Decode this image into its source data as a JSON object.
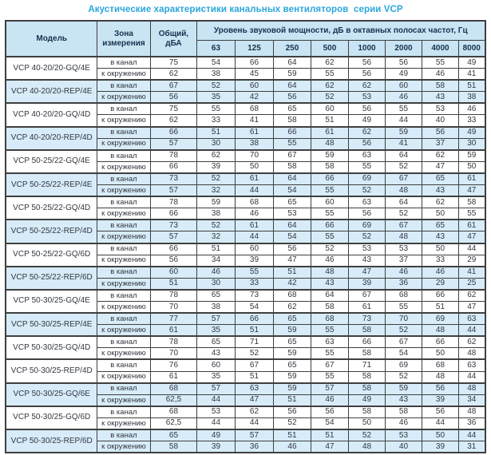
{
  "title": "Акустические характеристики канальных вентиляторов  серии VCP",
  "colors": {
    "title_accent": "#2ba6dc",
    "header_bg": "#c9e4f3",
    "stripe_bg": "#d7ecf8",
    "border": "#3f3f3f"
  },
  "table": {
    "headers": {
      "model": "Модель",
      "zone": "Зона измерения",
      "total": "Общий, дБА",
      "spl": "Уровень звуковой мощности, дБ в октавных полосах частот, Гц",
      "frequencies": [
        "63",
        "125",
        "250",
        "500",
        "1000",
        "2000",
        "4000",
        "8000"
      ]
    },
    "zone_labels": {
      "duct": "в канал",
      "ambient": "к окружению"
    },
    "rows": [
      {
        "model": "VCP 40-20/20-GQ/4E",
        "shaded": false,
        "duct": {
          "total": "75",
          "bands": [
            "54",
            "66",
            "64",
            "62",
            "56",
            "56",
            "55",
            "49"
          ]
        },
        "ambient": {
          "total": "62",
          "bands": [
            "38",
            "45",
            "59",
            "55",
            "56",
            "49",
            "46",
            "41"
          ]
        }
      },
      {
        "model": "VCP 40-20/20-REP/4E",
        "shaded": true,
        "duct": {
          "total": "67",
          "bands": [
            "52",
            "60",
            "64",
            "62",
            "62",
            "60",
            "58",
            "51"
          ]
        },
        "ambient": {
          "total": "56",
          "bands": [
            "35",
            "42",
            "56",
            "52",
            "53",
            "46",
            "43",
            "38"
          ]
        }
      },
      {
        "model": "VCP 40-20/20-GQ/4D",
        "shaded": false,
        "duct": {
          "total": "75",
          "bands": [
            "55",
            "68",
            "65",
            "60",
            "56",
            "55",
            "53",
            "46"
          ]
        },
        "ambient": {
          "total": "62",
          "bands": [
            "33",
            "41",
            "58",
            "51",
            "49",
            "44",
            "40",
            "33"
          ]
        }
      },
      {
        "model": "VCP 40-20/20-REP/4D",
        "shaded": true,
        "duct": {
          "total": "66",
          "bands": [
            "51",
            "61",
            "66",
            "61",
            "62",
            "59",
            "56",
            "49"
          ]
        },
        "ambient": {
          "total": "57",
          "bands": [
            "30",
            "38",
            "55",
            "48",
            "56",
            "41",
            "37",
            "30"
          ]
        }
      },
      {
        "model": "VCP 50-25/22-GQ/4E",
        "shaded": false,
        "duct": {
          "total": "78",
          "bands": [
            "62",
            "70",
            "67",
            "59",
            "63",
            "64",
            "62",
            "59"
          ]
        },
        "ambient": {
          "total": "66",
          "bands": [
            "39",
            "50",
            "58",
            "58",
            "55",
            "52",
            "47",
            "50"
          ]
        }
      },
      {
        "model": "VCP 50-25/22-REP/4E",
        "shaded": true,
        "duct": {
          "total": "73",
          "bands": [
            "52",
            "61",
            "64",
            "66",
            "69",
            "67",
            "65",
            "61"
          ]
        },
        "ambient": {
          "total": "57",
          "bands": [
            "32",
            "44",
            "54",
            "55",
            "52",
            "48",
            "43",
            "47"
          ]
        }
      },
      {
        "model": "VCP 50-25/22-GQ/4D",
        "shaded": false,
        "duct": {
          "total": "78",
          "bands": [
            "59",
            "68",
            "65",
            "60",
            "63",
            "64",
            "62",
            "58"
          ]
        },
        "ambient": {
          "total": "66",
          "bands": [
            "38",
            "46",
            "53",
            "55",
            "56",
            "52",
            "50",
            "55"
          ]
        }
      },
      {
        "model": "VCP 50-25/22-REP/4D",
        "shaded": true,
        "duct": {
          "total": "73",
          "bands": [
            "52",
            "61",
            "64",
            "66",
            "69",
            "67",
            "65",
            "61"
          ]
        },
        "ambient": {
          "total": "57",
          "bands": [
            "32",
            "44",
            "54",
            "55",
            "52",
            "48",
            "43",
            "47"
          ]
        }
      },
      {
        "model": "VCP 50-25/22-GQ/6D",
        "shaded": false,
        "duct": {
          "total": "66",
          "bands": [
            "51",
            "60",
            "56",
            "52",
            "53",
            "53",
            "50",
            "44"
          ]
        },
        "ambient": {
          "total": "56",
          "bands": [
            "34",
            "39",
            "47",
            "46",
            "43",
            "37",
            "33",
            "29"
          ]
        }
      },
      {
        "model": "VCP 50-25/22-REP/6D",
        "shaded": true,
        "duct": {
          "total": "60",
          "bands": [
            "46",
            "55",
            "51",
            "48",
            "47",
            "46",
            "46",
            "41"
          ]
        },
        "ambient": {
          "total": "51",
          "bands": [
            "30",
            "33",
            "42",
            "43",
            "39",
            "36",
            "29",
            "25"
          ]
        }
      },
      {
        "model": "VCP 50-30/25-GQ/4E",
        "shaded": false,
        "duct": {
          "total": "78",
          "bands": [
            "65",
            "73",
            "68",
            "64",
            "67",
            "68",
            "66",
            "62"
          ]
        },
        "ambient": {
          "total": "70",
          "bands": [
            "38",
            "54",
            "62",
            "58",
            "61",
            "55",
            "51",
            "47"
          ]
        }
      },
      {
        "model": "VCP 50-30/25-REP/4E",
        "shaded": true,
        "duct": {
          "total": "77",
          "bands": [
            "57",
            "66",
            "65",
            "68",
            "73",
            "70",
            "69",
            "63"
          ]
        },
        "ambient": {
          "total": "61",
          "bands": [
            "35",
            "51",
            "59",
            "55",
            "58",
            "52",
            "48",
            "44"
          ]
        }
      },
      {
        "model": "VCP 50-30/25-GQ/4D",
        "shaded": false,
        "duct": {
          "total": "78",
          "bands": [
            "65",
            "71",
            "65",
            "63",
            "66",
            "67",
            "66",
            "62"
          ]
        },
        "ambient": {
          "total": "70",
          "bands": [
            "43",
            "52",
            "59",
            "55",
            "58",
            "54",
            "50",
            "48"
          ]
        }
      },
      {
        "model": "VCP 50-30/25-REP/4D",
        "shaded": false,
        "duct": {
          "total": "76",
          "bands": [
            "60",
            "67",
            "65",
            "67",
            "71",
            "69",
            "68",
            "63"
          ]
        },
        "ambient": {
          "total": "61",
          "bands": [
            "35",
            "51",
            "59",
            "55",
            "58",
            "52",
            "48",
            "44"
          ]
        }
      },
      {
        "model": "VCP 50-30/25-GQ/6E",
        "shaded": true,
        "duct": {
          "total": "68",
          "bands": [
            "57",
            "63",
            "59",
            "57",
            "58",
            "59",
            "56",
            "48"
          ]
        },
        "ambient": {
          "total": "62,5",
          "bands": [
            "44",
            "47",
            "51",
            "46",
            "49",
            "43",
            "39",
            "34"
          ]
        }
      },
      {
        "model": "VCP 50-30/25-GQ/6D",
        "shaded": false,
        "duct": {
          "total": "68",
          "bands": [
            "53",
            "62",
            "56",
            "56",
            "58",
            "58",
            "56",
            "48"
          ]
        },
        "ambient": {
          "total": "62,5",
          "bands": [
            "44",
            "44",
            "52",
            "54",
            "50",
            "46",
            "44",
            "36"
          ]
        }
      },
      {
        "model": "VCP 50-30/25-REP/6D",
        "shaded": true,
        "duct": {
          "total": "65",
          "bands": [
            "49",
            "57",
            "51",
            "51",
            "52",
            "53",
            "50",
            "44"
          ]
        },
        "ambient": {
          "total": "58",
          "bands": [
            "39",
            "36",
            "46",
            "47",
            "48",
            "40",
            "39",
            "31"
          ]
        }
      }
    ]
  }
}
